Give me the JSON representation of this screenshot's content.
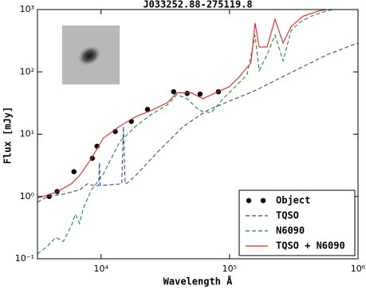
{
  "chart_data": {
    "type": "line",
    "title": "J033252.88-275119.8",
    "x_label": "Wavelength Å",
    "y_label": "Flux [mJy]",
    "xscale": "log",
    "yscale": "log",
    "xlim": [
      3200,
      1000000
    ],
    "ylim": [
      0.1,
      1000
    ],
    "xticks": [
      {
        "value": 10000,
        "label": "10⁴"
      },
      {
        "value": 100000,
        "label": "10⁵"
      },
      {
        "value": 1000000,
        "label": "10⁶"
      }
    ],
    "yticks": [
      {
        "value": 0.1,
        "label": "10⁻¹"
      },
      {
        "value": 1,
        "label": "10⁰"
      },
      {
        "value": 10,
        "label": "10¹"
      },
      {
        "value": 100,
        "label": "10²"
      },
      {
        "value": 1000,
        "label": "10³"
      }
    ],
    "legend": "lower right",
    "series": [
      {
        "name": "Object",
        "color": "#000000",
        "style": "marker",
        "x": [
          3950,
          4550,
          6150,
          8550,
          9300,
          12900,
          17200,
          23000,
          36700,
          46800,
          59000,
          81900
        ],
        "values": [
          1.0,
          1.2,
          2.5,
          4.1,
          6.4,
          11,
          16,
          25,
          48,
          45,
          44,
          48
        ]
      },
      {
        "name": "TQSO",
        "color": "#3344bb",
        "style": "dashed",
        "x": [
          3200,
          3840,
          5100,
          6800,
          7830,
          9050,
          9580,
          9720,
          9860,
          12000,
          14500,
          14930,
          15390,
          16000,
          18500,
          28400,
          43600,
          67000,
          100000,
          158000,
          243000,
          372000,
          573000,
          1000000
        ],
        "values": [
          0.81,
          1.0,
          1.09,
          1.27,
          1.6,
          1.47,
          1.5,
          3.5,
          1.5,
          1.55,
          1.6,
          13.3,
          1.6,
          1.65,
          2.15,
          5.5,
          13.3,
          24,
          34,
          50,
          78,
          121,
          188,
          291
        ]
      },
      {
        "name": "N6090",
        "color": "#1a8a3a",
        "style": "dashed",
        "x": [
          3200,
          3840,
          4430,
          5100,
          5880,
          6310,
          6800,
          7300,
          8420,
          10400,
          13900,
          18500,
          24600,
          32800,
          38900,
          46800,
          58100,
          71900,
          89100,
          119000,
          137000,
          158000,
          170000,
          196000,
          226000,
          261000,
          301000,
          347000,
          430000,
          573000,
          641000
        ],
        "values": [
          0.12,
          0.16,
          0.22,
          0.19,
          0.34,
          0.52,
          0.37,
          0.66,
          1.27,
          2.28,
          7.4,
          13.3,
          20.7,
          29.5,
          43,
          37,
          24,
          22,
          37,
          67,
          90,
          390,
          105,
          188,
          390,
          150,
          455,
          610,
          780,
          950,
          1000
        ]
      },
      {
        "name": "TQSO + N6090",
        "color": "#e8221a",
        "style": "solid",
        "x": [
          3200,
          4430,
          5880,
          6800,
          8420,
          10400,
          13900,
          18500,
          24600,
          32800,
          38900,
          50300,
          62300,
          77500,
          100000,
          119000,
          147000,
          158000,
          170000,
          196000,
          226000,
          261000,
          301000,
          372000,
          496000,
          573000
        ],
        "values": [
          0.94,
          1.16,
          1.6,
          2.15,
          4.1,
          8.6,
          13.3,
          19,
          24,
          32,
          46,
          46,
          37,
          46,
          58,
          83,
          140,
          610,
          250,
          250,
          700,
          290,
          530,
          780,
          950,
          1000
        ]
      }
    ]
  }
}
